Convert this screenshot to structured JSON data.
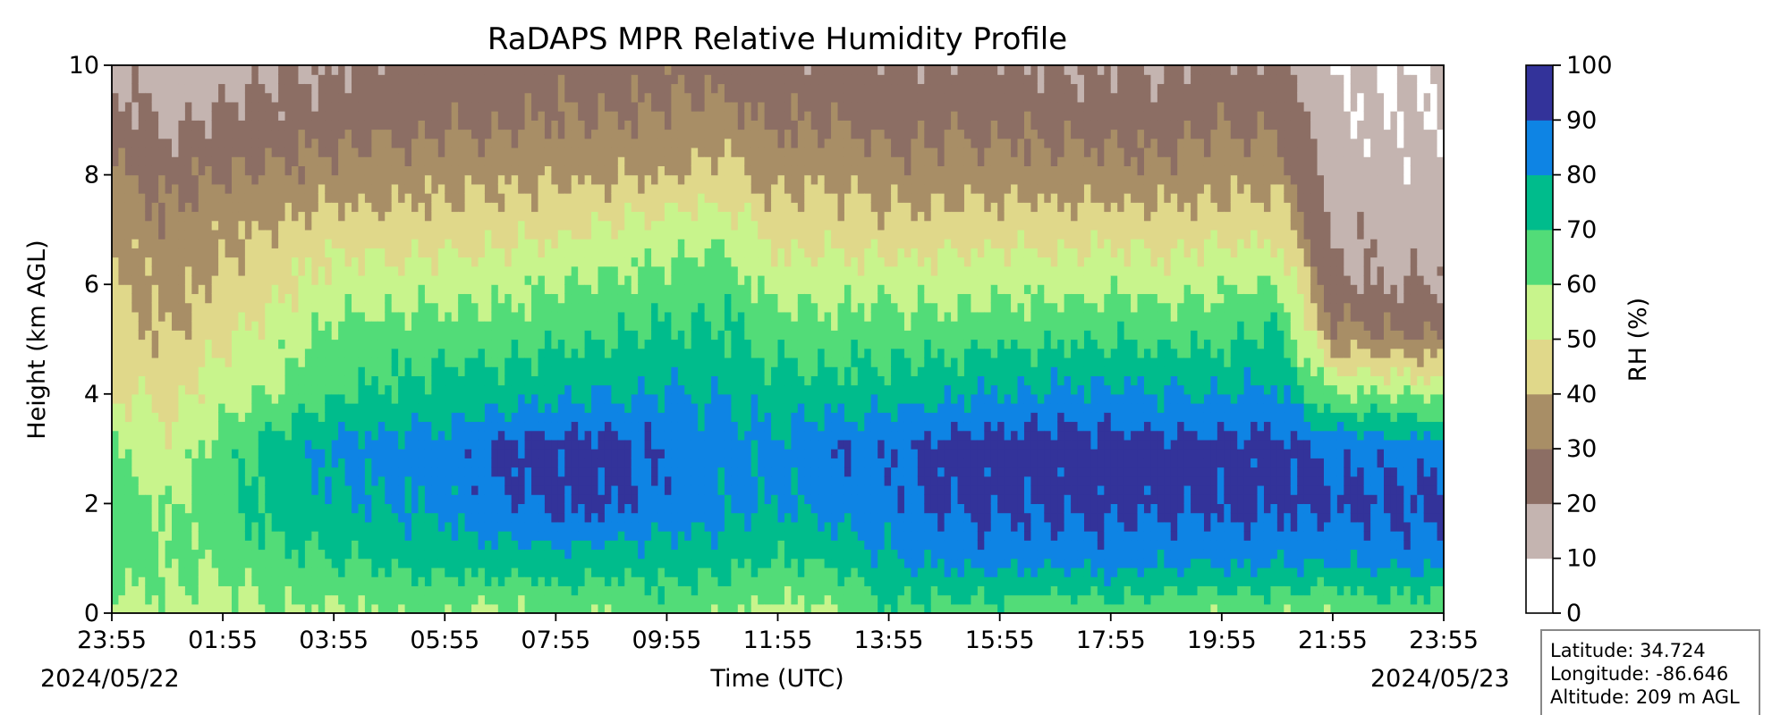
{
  "chart_data": {
    "type": "heatmap",
    "title": "RaDAPS MPR Relative Humidity Profile",
    "xlabel": "Time (UTC)",
    "ylabel": "Height (km AGL)",
    "x_ticks": [
      "23:55",
      "01:55",
      "03:55",
      "05:55",
      "07:55",
      "09:55",
      "11:55",
      "13:55",
      "15:55",
      "17:55",
      "19:55",
      "21:55",
      "23:55"
    ],
    "start_date": "2024/05/22",
    "end_date": "2024/05/23",
    "y_ticks": [
      "0",
      "2",
      "4",
      "6",
      "8",
      "10"
    ],
    "ylim": [
      0,
      10
    ],
    "colorbar": {
      "label": "RH (%)",
      "ticks": [
        "0",
        "10",
        "20",
        "30",
        "40",
        "50",
        "60",
        "70",
        "80",
        "90",
        "100"
      ],
      "levels": [
        0,
        10,
        20,
        30,
        40,
        50,
        60,
        70,
        80,
        90,
        100
      ],
      "colors": [
        "#ffffff",
        "#c4b4b0",
        "#8c6e64",
        "#a88e66",
        "#e0d88a",
        "#c8f48c",
        "#52dc78",
        "#00bc8c",
        "#0e84e4",
        "#33339a"
      ]
    },
    "rh_profile": {
      "times_hours_after_start": [
        0,
        1,
        2,
        3,
        4,
        5,
        6,
        7,
        8,
        9,
        10,
        11,
        12,
        13,
        14,
        15,
        16,
        17,
        18,
        19,
        20,
        21,
        22,
        23,
        24
      ],
      "heights_km": [
        0,
        1,
        2,
        3,
        4,
        5,
        6,
        7,
        8,
        9,
        10
      ],
      "rh_percent": [
        [
          55,
          65,
          70,
          60,
          50,
          45,
          42,
          40,
          32,
          25,
          18
        ],
        [
          58,
          62,
          58,
          52,
          48,
          40,
          35,
          32,
          26,
          18,
          14
        ],
        [
          55,
          62,
          68,
          65,
          55,
          48,
          42,
          38,
          30,
          22,
          15
        ],
        [
          60,
          68,
          75,
          75,
          62,
          55,
          48,
          42,
          32,
          24,
          18
        ],
        [
          58,
          70,
          78,
          82,
          68,
          62,
          55,
          45,
          34,
          26,
          20
        ],
        [
          62,
          72,
          80,
          85,
          72,
          65,
          55,
          45,
          35,
          27,
          22
        ],
        [
          60,
          75,
          82,
          84,
          74,
          66,
          56,
          45,
          36,
          28,
          24
        ],
        [
          58,
          75,
          88,
          92,
          76,
          66,
          56,
          47,
          37,
          28,
          24
        ],
        [
          62,
          78,
          92,
          94,
          78,
          68,
          60,
          48,
          38,
          30,
          25
        ],
        [
          60,
          74,
          92,
          94,
          80,
          70,
          62,
          52,
          38,
          30,
          24
        ],
        [
          65,
          76,
          86,
          88,
          80,
          72,
          64,
          55,
          40,
          32,
          26
        ],
        [
          62,
          74,
          82,
          84,
          80,
          72,
          66,
          56,
          44,
          34,
          26
        ],
        [
          56,
          70,
          80,
          82,
          74,
          66,
          56,
          46,
          36,
          28,
          22
        ],
        [
          58,
          72,
          84,
          90,
          75,
          65,
          56,
          46,
          38,
          30,
          24
        ],
        [
          68,
          80,
          86,
          88,
          75,
          66,
          56,
          44,
          34,
          26,
          22
        ],
        [
          64,
          84,
          92,
          94,
          78,
          66,
          55,
          45,
          34,
          27,
          22
        ],
        [
          66,
          85,
          92,
          95,
          80,
          68,
          58,
          46,
          35,
          28,
          22
        ],
        [
          60,
          84,
          92,
          95,
          82,
          68,
          56,
          46,
          34,
          26,
          20
        ],
        [
          64,
          86,
          93,
          95,
          82,
          70,
          58,
          46,
          34,
          26,
          20
        ],
        [
          62,
          82,
          92,
          94,
          80,
          68,
          56,
          45,
          33,
          25,
          20
        ],
        [
          60,
          84,
          92,
          94,
          80,
          68,
          58,
          46,
          36,
          28,
          22
        ],
        [
          62,
          82,
          92,
          94,
          82,
          72,
          62,
          48,
          36,
          28,
          22
        ],
        [
          60,
          82,
          92,
          88,
          62,
          35,
          22,
          18,
          15,
          13,
          11
        ],
        [
          64,
          84,
          92,
          86,
          60,
          32,
          19,
          16,
          13,
          11,
          9
        ],
        [
          62,
          84,
          92,
          86,
          58,
          30,
          20,
          16,
          14,
          12,
          10
        ]
      ]
    }
  },
  "info_box": {
    "latitude": "Latitude: 34.724",
    "longitude": "Longitude: -86.646",
    "altitude": "Altitude: 209 m AGL"
  }
}
